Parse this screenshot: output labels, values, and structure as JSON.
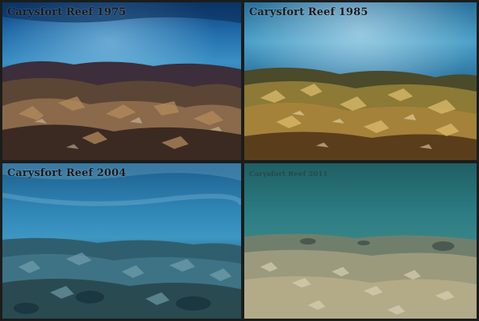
{
  "panels": [
    {
      "caption": "Carysfort Reef 1975"
    },
    {
      "caption": "Carysfort Reef 1985"
    },
    {
      "caption": "Carysfort Reef 2004"
    },
    {
      "caption": "Carysfort Reef 2011"
    }
  ]
}
